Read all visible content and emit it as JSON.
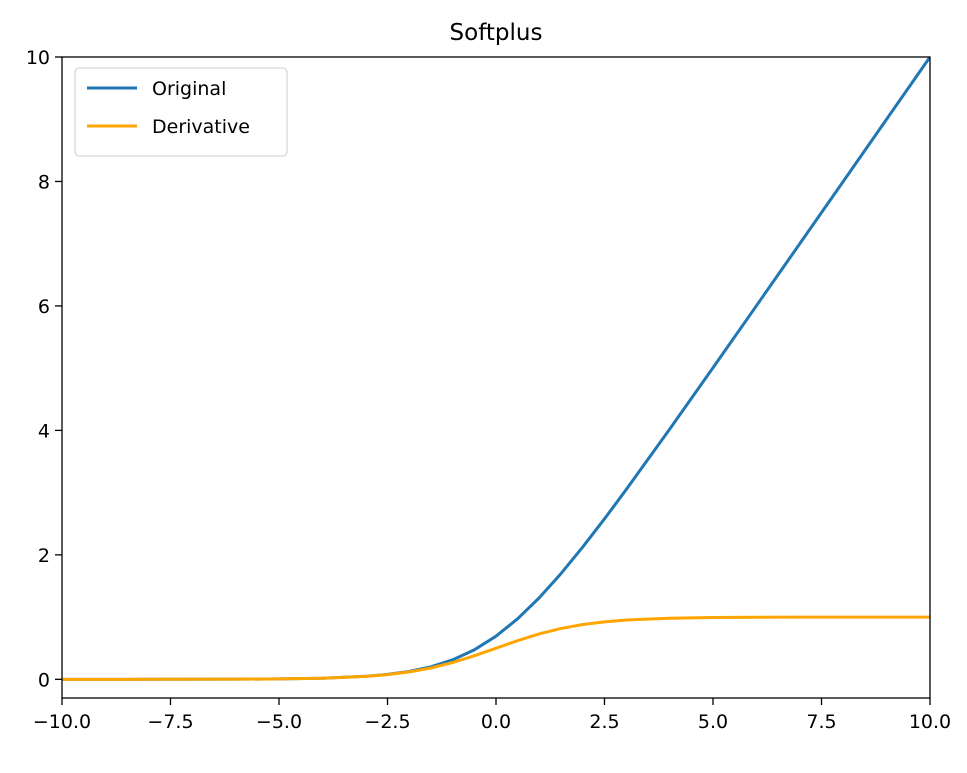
{
  "chart_data": {
    "type": "line",
    "title": "Softplus",
    "xlabel": "",
    "ylabel": "",
    "xlim": [
      -10,
      10
    ],
    "ylim": [
      -0.3,
      10
    ],
    "x_ticks": [
      -10,
      -7.5,
      -5,
      -2.5,
      0,
      2.5,
      5,
      7.5,
      10
    ],
    "x_tick_labels": [
      "−10.0",
      "−7.5",
      "−5.0",
      "−2.5",
      "0.0",
      "2.5",
      "5.0",
      "7.5",
      "10.0"
    ],
    "y_ticks": [
      0,
      2,
      4,
      6,
      8,
      10
    ],
    "y_tick_labels": [
      "0",
      "2",
      "4",
      "6",
      "8",
      "10"
    ],
    "grid": false,
    "legend_position": "top-left",
    "series": [
      {
        "name": "Original",
        "color": "#1f77b4",
        "x": [
          -10,
          -8,
          -6,
          -5,
          -4,
          -3,
          -2.5,
          -2,
          -1.5,
          -1,
          -0.5,
          0,
          0.5,
          1,
          1.5,
          2,
          2.5,
          3,
          4,
          5,
          6,
          7,
          8,
          9,
          10
        ],
        "y": [
          4.54e-05,
          0.000335,
          0.00248,
          0.00672,
          0.0181,
          0.0486,
          0.0789,
          0.127,
          0.201,
          0.313,
          0.474,
          0.693,
          0.974,
          1.313,
          1.701,
          2.127,
          2.579,
          3.049,
          4.018,
          5.007,
          6.002,
          7.001,
          8.0,
          9.0,
          10.0
        ]
      },
      {
        "name": "Derivative",
        "color": "#ffa500",
        "x": [
          -10,
          -8,
          -6,
          -5,
          -4,
          -3,
          -2.5,
          -2,
          -1.5,
          -1,
          -0.5,
          0,
          0.5,
          1,
          1.5,
          2,
          2.5,
          3,
          4,
          5,
          6,
          7,
          8,
          9,
          10
        ],
        "y": [
          4.54e-05,
          0.000335,
          0.00247,
          0.00669,
          0.018,
          0.0474,
          0.0759,
          0.119,
          0.182,
          0.269,
          0.378,
          0.5,
          0.622,
          0.731,
          0.818,
          0.881,
          0.924,
          0.953,
          0.982,
          0.993,
          0.998,
          0.999,
          1.0,
          1.0,
          1.0
        ]
      }
    ]
  }
}
